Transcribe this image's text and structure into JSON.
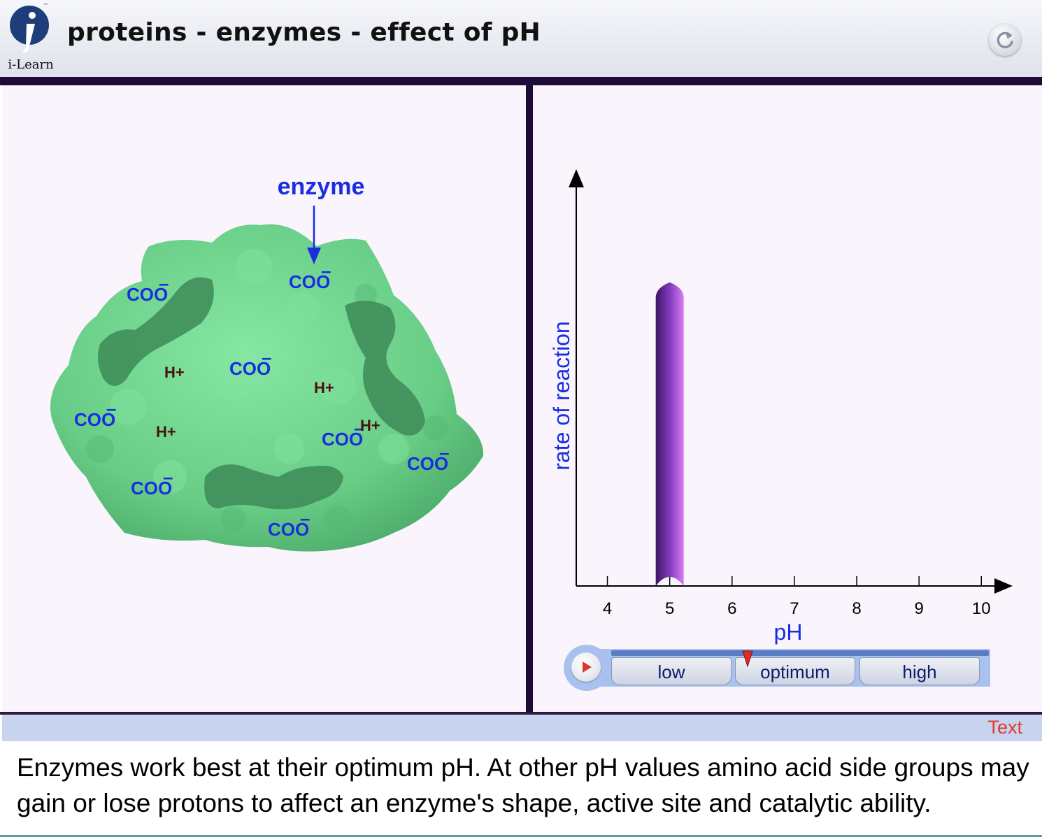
{
  "header": {
    "title": "proteins - enzymes - effect of pH",
    "logo_text": "i-Learn",
    "logo_tm": "™",
    "reset_icon": "refresh-icon"
  },
  "enzyme_panel": {
    "label": "enzyme",
    "enzyme_color": "#6fd08c",
    "coo_labels": [
      "COO",
      "COO",
      "COO",
      "COO",
      "COO",
      "COO",
      "COO",
      "COO",
      "COO"
    ],
    "charge_minus": "–",
    "h_labels": [
      "H+",
      "H+",
      "H+",
      "H+"
    ]
  },
  "chart_data": {
    "type": "bar",
    "title": "",
    "xlabel": "pH",
    "ylabel": "rate of reaction",
    "x_ticks": [
      "4",
      "5",
      "6",
      "7",
      "8",
      "9",
      "10"
    ],
    "xlim": [
      3.5,
      10.3
    ],
    "ylim": [
      0,
      1
    ],
    "bars": [
      {
        "x": 5,
        "value": 0.74
      }
    ],
    "bar_color": "#9b4fd0",
    "grid": false
  },
  "controls": {
    "play_icon": "play-icon",
    "buttons": [
      {
        "label": "low"
      },
      {
        "label": "optimum"
      },
      {
        "label": "high"
      }
    ],
    "marker_icon": "slider-marker-icon",
    "marker_color": "#e02a2a"
  },
  "footer": {
    "text_toggle": "Text",
    "caption": "Enzymes work best at their optimum pH. At other pH values amino acid side groups may gain or lose protons to affect an enzyme's shape, active site and catalytic ability."
  }
}
